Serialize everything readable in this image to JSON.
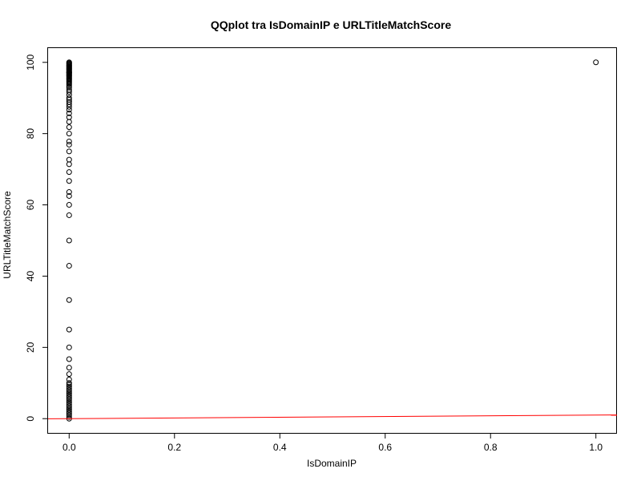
{
  "chart_data": {
    "type": "scatter",
    "title": "QQplot tra IsDomainIP e URLTitleMatchScore",
    "xlabel": "IsDomainIP",
    "ylabel": "URLTitleMatchScore",
    "xlim": [
      -0.04,
      1.04
    ],
    "ylim": [
      -4,
      104
    ],
    "x_ticks": [
      0.0,
      0.2,
      0.4,
      0.6,
      0.8,
      1.0
    ],
    "x_tick_labels": [
      "0.0",
      "0.2",
      "0.4",
      "0.6",
      "0.8",
      "1.0"
    ],
    "y_ticks": [
      0,
      20,
      40,
      60,
      80,
      100
    ],
    "y_tick_labels": [
      "0",
      "20",
      "40",
      "60",
      "80",
      "100"
    ],
    "grid": false,
    "legend": "none",
    "series": [
      {
        "marker": "open-circle",
        "color": "#000000",
        "points": [
          [
            0,
            0
          ],
          [
            0,
            0.5
          ],
          [
            0,
            1
          ],
          [
            0,
            1.5
          ],
          [
            0,
            2
          ],
          [
            0,
            2.5
          ],
          [
            0,
            3
          ],
          [
            0,
            3.5
          ],
          [
            0,
            4
          ],
          [
            0,
            4.5
          ],
          [
            0,
            5
          ],
          [
            0,
            5.5
          ],
          [
            0,
            6
          ],
          [
            0,
            6.5
          ],
          [
            0,
            7
          ],
          [
            0,
            7.5
          ],
          [
            0,
            8
          ],
          [
            0,
            8.5
          ],
          [
            0,
            9
          ],
          [
            0,
            9.5
          ],
          [
            0,
            10
          ],
          [
            0,
            11
          ],
          [
            0,
            12.5
          ],
          [
            0,
            14.3
          ],
          [
            0,
            16.7
          ],
          [
            0,
            20
          ],
          [
            0,
            25
          ],
          [
            0,
            33.3
          ],
          [
            0,
            42.9
          ],
          [
            0,
            50
          ],
          [
            0,
            57.1
          ],
          [
            0,
            60
          ],
          [
            0,
            62.5
          ],
          [
            0,
            63.6
          ],
          [
            0,
            66.7
          ],
          [
            0,
            69.2
          ],
          [
            0,
            71.4
          ],
          [
            0,
            72.7
          ],
          [
            0,
            75
          ],
          [
            0,
            76.9
          ],
          [
            0,
            77.8
          ],
          [
            0,
            80
          ],
          [
            0,
            81.8
          ],
          [
            0,
            83.3
          ],
          [
            0,
            84.6
          ],
          [
            0,
            85.7
          ],
          [
            0,
            86.7
          ],
          [
            0,
            87.5
          ],
          [
            0,
            88.2
          ],
          [
            0,
            88.9
          ],
          [
            0,
            89.5
          ],
          [
            0,
            90
          ],
          [
            0,
            90.9
          ],
          [
            0,
            91.7
          ],
          [
            0,
            92.3
          ],
          [
            0,
            92.9
          ],
          [
            0,
            93.3
          ],
          [
            0,
            93.8
          ],
          [
            0,
            94.1
          ],
          [
            0,
            94.4
          ],
          [
            0,
            94.7
          ],
          [
            0,
            95
          ],
          [
            0,
            95.2
          ],
          [
            0,
            95.5
          ],
          [
            0,
            95.7
          ],
          [
            0,
            96
          ],
          [
            0,
            96.2
          ],
          [
            0,
            96.4
          ],
          [
            0,
            96.6
          ],
          [
            0,
            96.8
          ],
          [
            0,
            97
          ],
          [
            0,
            97.1
          ],
          [
            0,
            97.2
          ],
          [
            0,
            97.4
          ],
          [
            0,
            97.6
          ],
          [
            0,
            97.8
          ],
          [
            0,
            98
          ],
          [
            0,
            98.2
          ],
          [
            0,
            98.4
          ],
          [
            0,
            98.6
          ],
          [
            0,
            98.8
          ],
          [
            0,
            99
          ],
          [
            0,
            99.2
          ],
          [
            0,
            99.4
          ],
          [
            0,
            99.6
          ],
          [
            0,
            99.8
          ],
          [
            0,
            100
          ],
          [
            1,
            100
          ]
        ]
      }
    ],
    "reference_line": {
      "color": "#ff0000",
      "intercept": 0,
      "slope": 1
    }
  }
}
